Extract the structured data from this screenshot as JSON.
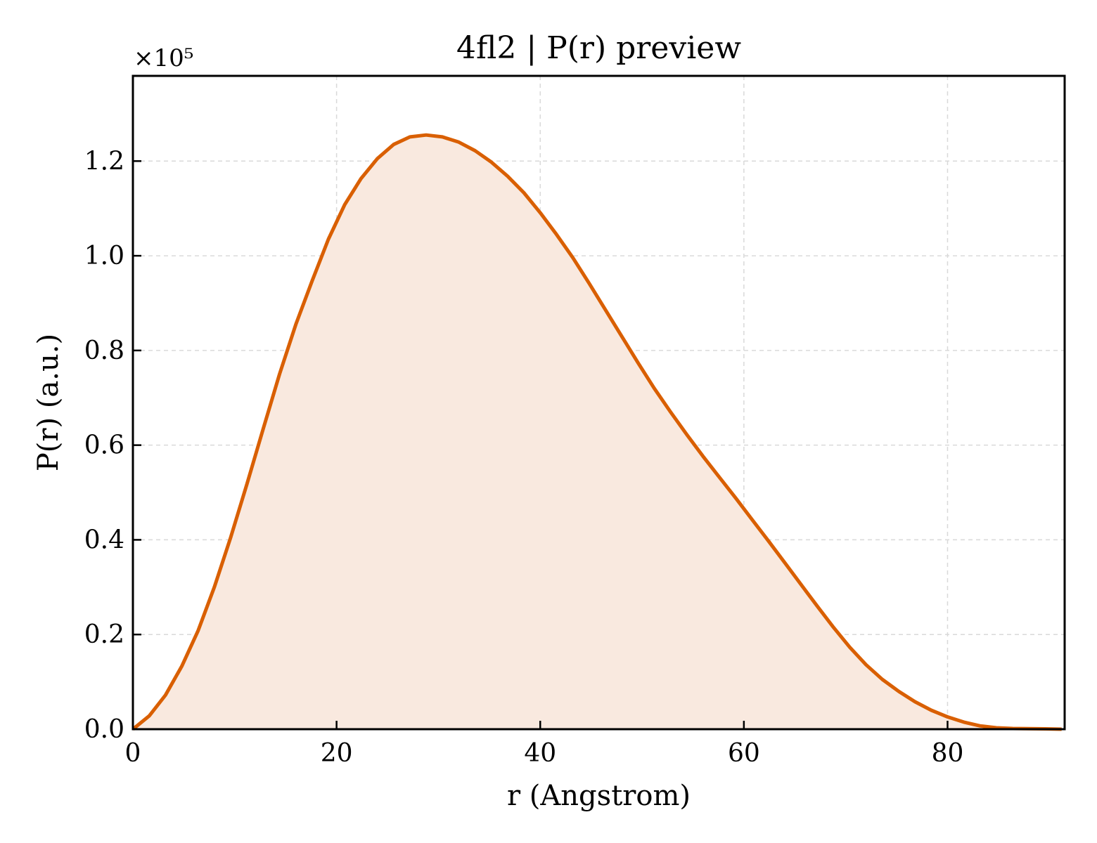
{
  "chart_data": {
    "type": "area",
    "title": "4fl2 | P(r) preview",
    "xlabel": "r (Angstrom)",
    "ylabel": "P(r) (a.u.)",
    "y_multiplier": "×10⁵",
    "xlim": [
      0,
      91.5
    ],
    "ylim": [
      0,
      1.38
    ],
    "xticks": [
      0,
      20,
      40,
      60,
      80
    ],
    "xtick_labels": [
      "0",
      "20",
      "40",
      "60",
      "80"
    ],
    "yticks": [
      0,
      0.2,
      0.4,
      0.6,
      0.8,
      1.0,
      1.2
    ],
    "ytick_labels": [
      "0.0",
      "0.2",
      "0.4",
      "0.6",
      "0.8",
      "1.0",
      "1.2"
    ],
    "grid": true,
    "colors": {
      "line": "#d95f02",
      "fill": "#f9e9df",
      "grid": "#d9d9d9"
    },
    "series": [
      {
        "x": [
          0,
          1.6,
          3.2,
          4.8,
          6.4,
          8.0,
          9.6,
          11.2,
          12.8,
          14.4,
          16.0,
          17.6,
          19.2,
          20.8,
          22.4,
          24.0,
          25.6,
          27.2,
          28.8,
          30.4,
          32.0,
          33.6,
          35.2,
          36.8,
          38.4,
          40.0,
          41.6,
          43.2,
          44.8,
          46.4,
          48.0,
          49.6,
          51.2,
          52.8,
          54.4,
          56.0,
          57.6,
          59.2,
          60.8,
          62.4,
          64.0,
          65.6,
          67.2,
          68.8,
          70.4,
          72.0,
          73.6,
          75.2,
          76.8,
          78.4,
          80.0,
          81.6,
          83.2,
          84.8,
          86.4,
          88.0,
          89.6,
          91.2
        ],
        "y": [
          0.0,
          0.028,
          0.072,
          0.133,
          0.208,
          0.3,
          0.405,
          0.518,
          0.635,
          0.75,
          0.855,
          0.947,
          1.035,
          1.108,
          1.163,
          1.205,
          1.235,
          1.251,
          1.255,
          1.251,
          1.24,
          1.222,
          1.198,
          1.168,
          1.133,
          1.091,
          1.045,
          0.996,
          0.942,
          0.886,
          0.83,
          0.774,
          0.72,
          0.67,
          0.622,
          0.576,
          0.532,
          0.488,
          0.443,
          0.398,
          0.352,
          0.306,
          0.26,
          0.215,
          0.173,
          0.136,
          0.105,
          0.08,
          0.058,
          0.04,
          0.026,
          0.015,
          0.007,
          0.003,
          0.0015,
          0.001,
          0.0008,
          0.0
        ]
      }
    ]
  }
}
